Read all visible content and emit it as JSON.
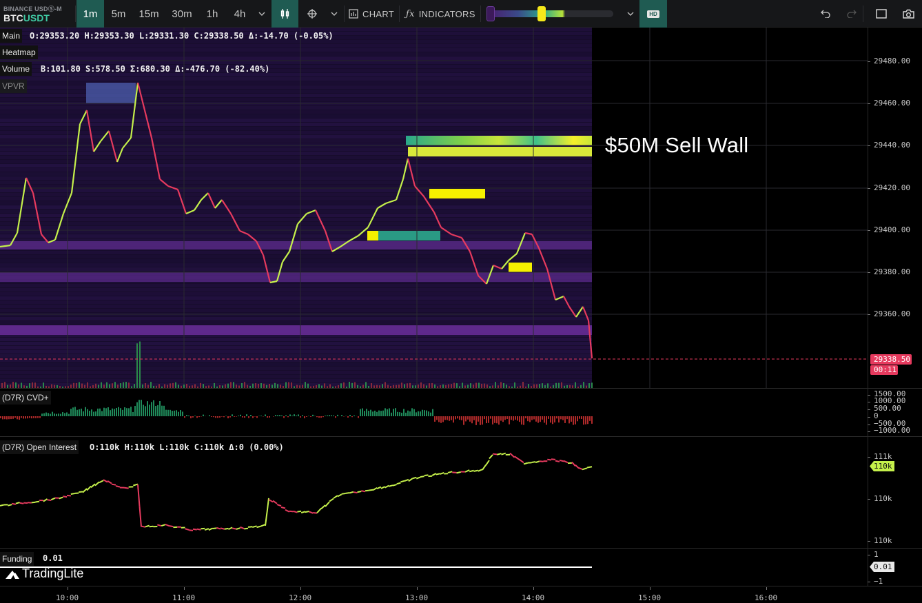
{
  "toolbar": {
    "exchange": "BINANCE USDⓈ-M",
    "pair_base": "BTC",
    "pair_quote": "USDT",
    "timeframes": [
      "1m",
      "5m",
      "15m",
      "30m",
      "1h",
      "4h"
    ],
    "active_timeframe": "1m",
    "chart_label": "CHART",
    "indicators_label": "INDICATORS",
    "hd_label": "HD",
    "icons": [
      "candles-icon",
      "crosshair-icon",
      "chevron-down-icon",
      "chart-icon",
      "fx-icon",
      "undo-icon",
      "redo-icon",
      "fullscreen-icon",
      "camera-icon"
    ]
  },
  "main": {
    "label": "Main",
    "ohlc": "O:29353.20 H:29353.30 L:29331.30 C:29338.50 Δ:-14.70 (-0.05%)",
    "heatmap_label": "Heatmap",
    "volume_label": "Volume",
    "volume_stats": "B:101.80 S:578.50 Σ:680.30 Δ:-476.70 (-82.40%)",
    "vpvr_label": "VPVR",
    "price_ticks": [
      "29480.00",
      "29460.00",
      "29440.00",
      "29420.00",
      "29400.00",
      "29380.00",
      "29360.00"
    ],
    "current_price": "29338.50",
    "countdown": "00:11",
    "annotation": "$50M Sell Wall"
  },
  "cvd": {
    "label": "(D7R) CVD+",
    "ticks": [
      "1500.00",
      "1000.00",
      "500.00",
      "0",
      "−500.00",
      "−1000.00"
    ]
  },
  "oi": {
    "label": "(D7R) Open Interest",
    "stats": "O:110k H:110k L:110k C:110k Δ:0 (0.00%)",
    "ticks": [
      "111k",
      "110k",
      "110k"
    ],
    "current": "110k"
  },
  "funding": {
    "label": "Funding",
    "value": "0.01",
    "ticks": [
      "1",
      "−1"
    ],
    "current": "0.01"
  },
  "brand": "TradingLite",
  "time_axis": [
    "10:00",
    "11:00",
    "12:00",
    "13:00",
    "14:00",
    "15:00",
    "16:00"
  ],
  "colors": {
    "up": "#c5f04b",
    "down": "#e63a5e",
    "accent": "#1f5b52",
    "heatmap_bg": "#1a1033"
  }
}
